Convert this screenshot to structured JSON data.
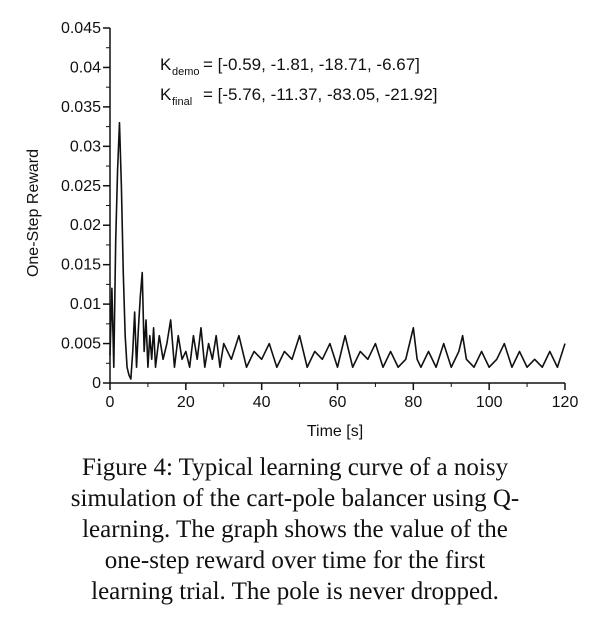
{
  "chart_data": {
    "type": "line",
    "title": "",
    "xlabel": "Time [s]",
    "ylabel": "One-Step Reward",
    "xlim": [
      0,
      120
    ],
    "ylim": [
      0,
      0.045
    ],
    "xticks": [
      0,
      20,
      40,
      60,
      80,
      100,
      120
    ],
    "xtick_labels": [
      "0",
      "20",
      "40",
      "60",
      "80",
      "100",
      "120"
    ],
    "yticks": [
      0,
      0.005,
      0.01,
      0.015,
      0.02,
      0.025,
      0.03,
      0.035,
      0.04,
      0.045
    ],
    "ytick_labels": [
      "0",
      "0.005",
      "0.01",
      "0.015",
      "0.02",
      "0.025",
      "0.03",
      "0.035",
      "0.04",
      "0.045"
    ],
    "grid": false,
    "annotations": [
      {
        "sym": "K",
        "sub": "demo",
        "text": "= [-0.59,   -1.81, -18.71,   -6.67]"
      },
      {
        "sym": "K",
        "sub": "final",
        "text": "= [-5.76, -11.37, -83.05, -21.92]"
      }
    ],
    "series": [
      {
        "x": [
          0,
          0.5,
          1,
          1.5,
          2,
          2.5,
          3,
          3.5,
          4,
          4.5,
          5,
          5.5,
          6,
          6.5,
          7,
          7.5,
          8,
          8.5,
          9,
          9.5,
          10,
          10.5,
          11,
          11.5,
          12,
          13,
          14,
          15,
          16,
          17,
          18,
          19,
          20,
          21,
          22,
          23,
          24,
          25,
          26,
          27,
          28,
          29,
          30,
          32,
          34,
          36,
          38,
          40,
          42,
          44,
          46,
          48,
          50,
          52,
          54,
          56,
          58,
          60,
          62,
          64,
          66,
          68,
          70,
          72,
          74,
          76,
          78,
          79,
          80,
          81,
          82,
          84,
          86,
          88,
          90,
          92,
          93,
          94,
          96,
          98,
          100,
          102,
          104,
          106,
          108,
          110,
          112,
          114,
          116,
          118,
          120
        ],
        "values": [
          0.0035,
          0.012,
          0.002,
          0.018,
          0.027,
          0.033,
          0.025,
          0.014,
          0.006,
          0.002,
          0.001,
          0.0005,
          0.004,
          0.009,
          0.002,
          0.007,
          0.011,
          0.014,
          0.004,
          0.008,
          0.002,
          0.006,
          0.003,
          0.007,
          0.002,
          0.006,
          0.003,
          0.005,
          0.008,
          0.002,
          0.006,
          0.003,
          0.004,
          0.002,
          0.006,
          0.003,
          0.007,
          0.002,
          0.005,
          0.003,
          0.006,
          0.002,
          0.005,
          0.003,
          0.006,
          0.002,
          0.004,
          0.003,
          0.005,
          0.002,
          0.004,
          0.003,
          0.006,
          0.002,
          0.004,
          0.003,
          0.005,
          0.002,
          0.006,
          0.002,
          0.004,
          0.003,
          0.005,
          0.002,
          0.004,
          0.002,
          0.003,
          0.005,
          0.007,
          0.003,
          0.002,
          0.004,
          0.002,
          0.005,
          0.002,
          0.004,
          0.006,
          0.003,
          0.002,
          0.004,
          0.002,
          0.003,
          0.005,
          0.002,
          0.004,
          0.002,
          0.003,
          0.002,
          0.004,
          0.002,
          0.005
        ]
      }
    ]
  },
  "caption": {
    "lines": [
      "Figure 4: Typical learning curve of a noisy",
      "simulation of the cart-pole balancer using Q-",
      "learning. The graph shows the value of the",
      "one-step reward over time for the first",
      "learning trial. The pole is never dropped."
    ]
  }
}
